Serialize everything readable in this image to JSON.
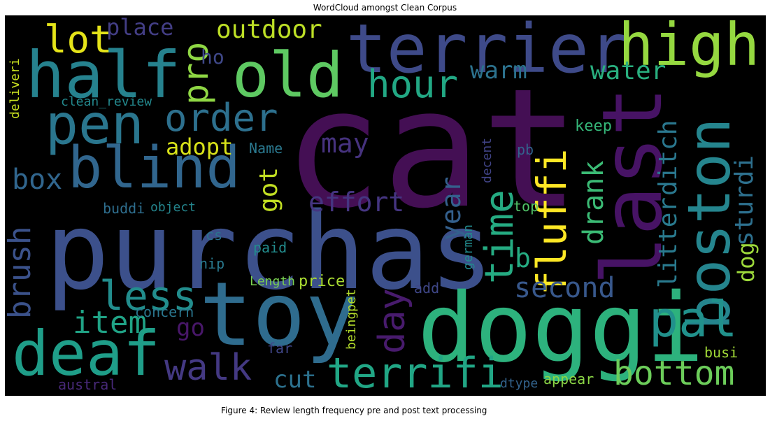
{
  "title": "WordCloud amongst Clean Corpus",
  "caption": "Figure 4: Review length frequency pre and post text processing",
  "words": [
    {
      "text": "cat",
      "color": "#440f54"
    },
    {
      "text": "purchas",
      "color": "#3c508b"
    },
    {
      "text": "toy",
      "color": "#2f6c8e"
    },
    {
      "text": "doggi",
      "color": "#2db27d"
    },
    {
      "text": "last",
      "color": "#471365"
    },
    {
      "text": "terrier",
      "color": "#3e4a89"
    },
    {
      "text": "half",
      "color": "#26828e"
    },
    {
      "text": "old",
      "color": "#5ec962"
    },
    {
      "text": "high",
      "color": "#95d840"
    },
    {
      "text": "boston",
      "color": "#25858e"
    },
    {
      "text": "blind",
      "color": "#31668e"
    },
    {
      "text": "pen",
      "color": "#2a768e"
    },
    {
      "text": "deaf",
      "color": "#1f9e89"
    },
    {
      "text": "fluffi",
      "color": "#fde725"
    },
    {
      "text": "pal",
      "color": "#21918c"
    },
    {
      "text": "terrifi",
      "color": "#21a685"
    },
    {
      "text": "walk",
      "color": "#443983"
    },
    {
      "text": "bottom",
      "color": "#6ccd5a"
    },
    {
      "text": "hour",
      "color": "#22a884"
    },
    {
      "text": "order",
      "color": "#2d708e"
    },
    {
      "text": "second",
      "color": "#38588c"
    },
    {
      "text": "time",
      "color": "#25ab82"
    },
    {
      "text": "day",
      "color": "#481b6d"
    },
    {
      "text": "less",
      "color": "#228d8d"
    },
    {
      "text": "item",
      "color": "#20a386"
    },
    {
      "text": "lot",
      "color": "#e5e419"
    },
    {
      "text": "pro",
      "color": "#8fd744"
    },
    {
      "text": "outdoor",
      "color": "#bddf26"
    },
    {
      "text": "place",
      "color": "#433e85"
    },
    {
      "text": "water",
      "color": "#29af7f"
    },
    {
      "text": "warm",
      "color": "#2c728e"
    },
    {
      "text": "ho",
      "color": "#3f4889"
    },
    {
      "text": "box",
      "color": "#31668e"
    },
    {
      "text": "effort",
      "color": "#453581"
    },
    {
      "text": "may",
      "color": "#46327e"
    },
    {
      "text": "adopt",
      "color": "#d8e219"
    },
    {
      "text": "got",
      "color": "#c2df23"
    },
    {
      "text": "year",
      "color": "#34608d"
    },
    {
      "text": "drank",
      "color": "#3bbb75"
    },
    {
      "text": "litter",
      "color": "#297a8e"
    },
    {
      "text": "ditch",
      "color": "#2a778e"
    },
    {
      "text": "sturdi",
      "color": "#2d708e"
    },
    {
      "text": "dog",
      "color": "#9dd93b"
    },
    {
      "text": "brush",
      "color": "#3b528b"
    },
    {
      "text": "b",
      "color": "#25ac82"
    },
    {
      "text": "go",
      "color": "#481769"
    },
    {
      "text": "concern",
      "color": "#2a768e"
    },
    {
      "text": "Name",
      "color": "#2a788e"
    },
    {
      "text": "pb",
      "color": "#33638d"
    },
    {
      "text": "keep",
      "color": "#35b779"
    },
    {
      "text": "buddi",
      "color": "#2e6e8e"
    },
    {
      "text": "object",
      "color": "#24868e"
    },
    {
      "text": "top",
      "color": "#52c569"
    },
    {
      "text": "cs",
      "color": "#2c728e"
    },
    {
      "text": "paid",
      "color": "#228c8d"
    },
    {
      "text": "nip",
      "color": "#29798e"
    },
    {
      "text": "Length",
      "color": "#7ad151"
    },
    {
      "text": "price",
      "color": "#aadc32"
    },
    {
      "text": "add",
      "color": "#3f4788"
    },
    {
      "text": "cut",
      "color": "#2c718e"
    },
    {
      "text": "far",
      "color": "#404688"
    },
    {
      "text": "appear",
      "color": "#8bd646"
    },
    {
      "text": "dtype",
      "color": "#33638d"
    },
    {
      "text": "austral",
      "color": "#482979"
    },
    {
      "text": "busi",
      "color": "#a2da37"
    },
    {
      "text": "german",
      "color": "#228b8d"
    },
    {
      "text": "decent",
      "color": "#414487"
    },
    {
      "text": "beingpet",
      "color": "#b5de2b"
    },
    {
      "text": "clean_review",
      "color": "#23898e"
    },
    {
      "text": "deliveri",
      "color": "#c8e020"
    }
  ]
}
